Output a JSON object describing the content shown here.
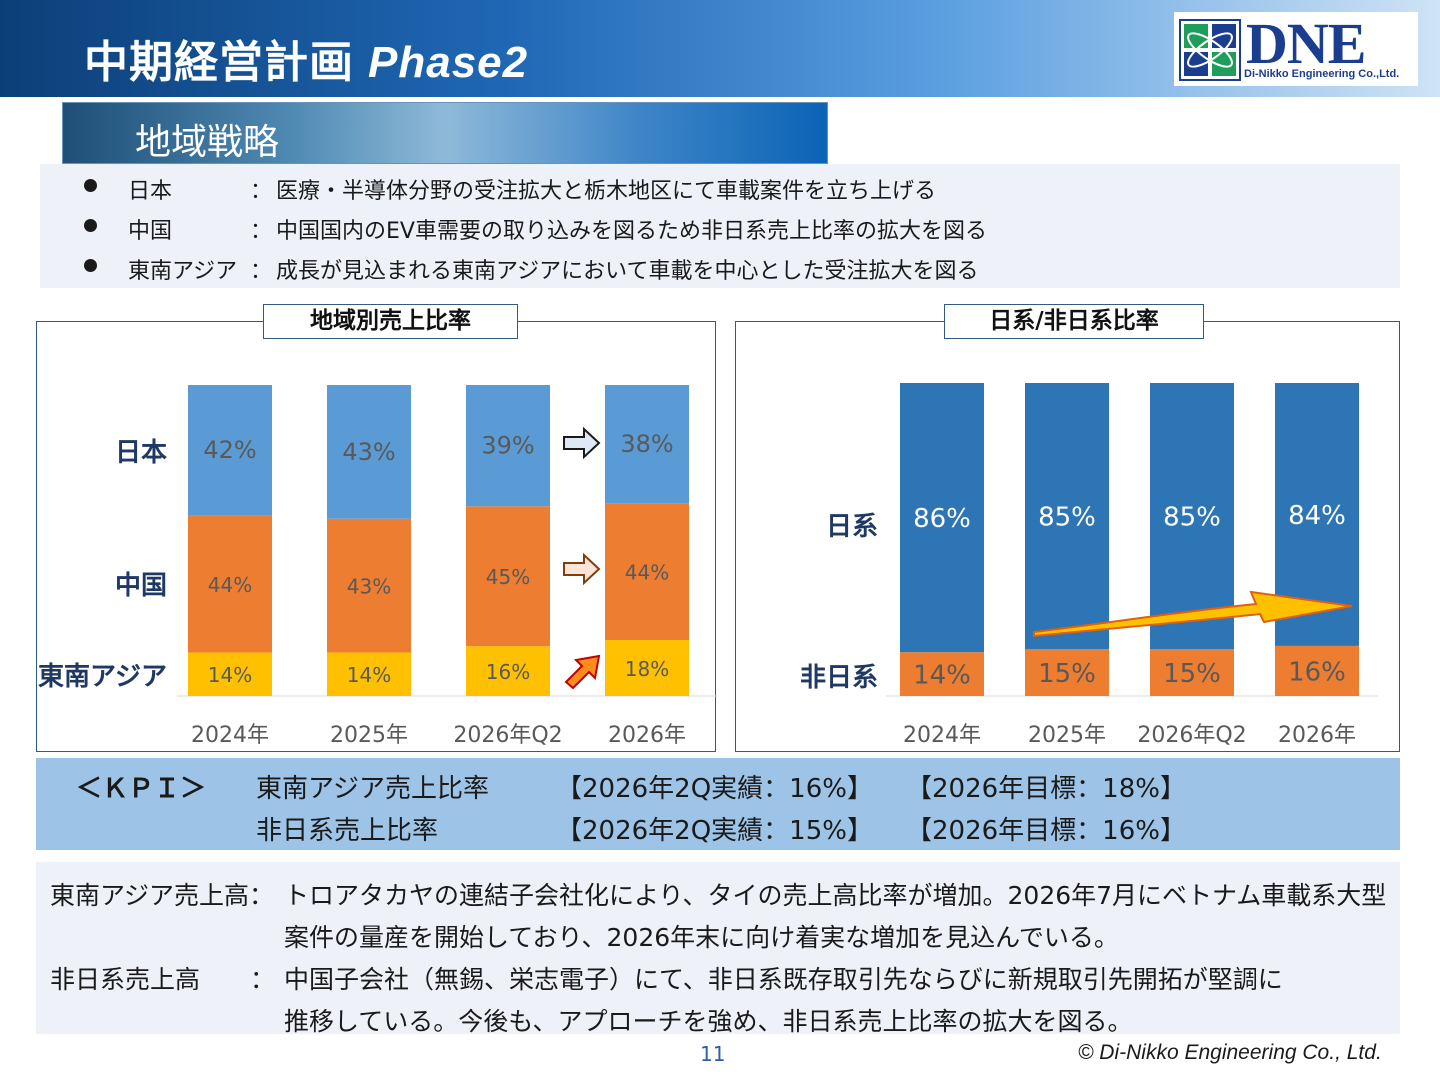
{
  "header": {
    "title": "中期経営計画",
    "phase": "Phase2",
    "logo_text": "DNE",
    "logo_subtext": "Di-Nikko Engineering Co.,Ltd."
  },
  "strategy": {
    "heading": "地域戦略",
    "bullets": [
      {
        "region": "日本",
        "colon": "：",
        "text": "医療・半導体分野の受注拡大と栃木地区にて車載案件を立ち上げる"
      },
      {
        "region": "中国",
        "colon": "：",
        "text": "中国国内のEV車需要の取り込みを図るため非日系売上比率の拡大を図る"
      },
      {
        "region": "東南アジア",
        "colon": "：",
        "text": "成長が見込まれる東南アジアにおいて車載を中心とした受注拡大を図る"
      }
    ]
  },
  "chart_data": [
    {
      "type": "bar",
      "stacked": true,
      "title": "地域別売上比率",
      "categories": [
        "2024年",
        "2025年",
        "2026年Q2",
        "2026年"
      ],
      "series": [
        {
          "name": "東南アジア",
          "values": [
            14,
            14,
            16,
            18
          ],
          "labels": [
            "14%",
            "14%",
            "16%",
            "18%"
          ],
          "color": "#ffc000"
        },
        {
          "name": "中国",
          "values": [
            44,
            43,
            45,
            44
          ],
          "labels": [
            "44%",
            "43%",
            "45%",
            "44%"
          ],
          "color": "#ed7d31"
        },
        {
          "name": "日本",
          "values": [
            42,
            43,
            39,
            38
          ],
          "labels": [
            "42%",
            "43%",
            "39%",
            "38%"
          ],
          "color": "#5b9bd5"
        }
      ],
      "ylim": [
        0,
        100
      ],
      "grid": false
    },
    {
      "type": "bar",
      "stacked": true,
      "title": "日系/非日系比率",
      "categories": [
        "2024年",
        "2025年",
        "2026年Q2",
        "2026年"
      ],
      "series": [
        {
          "name": "非日系",
          "values": [
            14,
            15,
            15,
            16
          ],
          "labels": [
            "14%",
            "15%",
            "15%",
            "16%"
          ],
          "color": "#ed7d31"
        },
        {
          "name": "日系",
          "values": [
            86,
            85,
            85,
            84
          ],
          "labels": [
            "86%",
            "85%",
            "85%",
            "84%"
          ],
          "color": "#2e75b6"
        }
      ],
      "ylim": [
        0,
        100
      ],
      "grid": false
    }
  ],
  "kpi": {
    "label": "＜ＫＰＩ＞",
    "rows": [
      {
        "name": "東南アジア売上比率",
        "actual": "【2026年2Q実績：16%】",
        "target": "【2026年目標：18%】"
      },
      {
        "name": "非日系売上比率",
        "actual": "【2026年2Q実績：15%】",
        "target": "【2026年目標：16%】"
      }
    ]
  },
  "notes": [
    {
      "label": "東南アジア売上高：",
      "line1": "トロアタカヤの連結子会社化により、タイの売上高比率が増加。2026年7月にベトナム車載系大型",
      "line2": "案件の量産を開始しており、2026年末に向け着実な増加を見込んでいる。"
    },
    {
      "label": "非日系売上高　　：",
      "line1": "中国子会社（無錫、栄志電子）にて、非日系既存取引先ならびに新規取引先開拓が堅調に",
      "line2": "推移している。今後も、アプローチを強め、非日系売上比率の拡大を図る。"
    }
  ],
  "footer": {
    "page": "11",
    "copyright": "© Di-Nikko Engineering Co., Ltd."
  },
  "colors": {
    "japan": "#5b9bd5",
    "china": "#ed7d31",
    "sea": "#ffc000",
    "japanese": "#2e75b6",
    "kpi_band": "#9dc3e6",
    "header_dark": "#0c3f78"
  }
}
